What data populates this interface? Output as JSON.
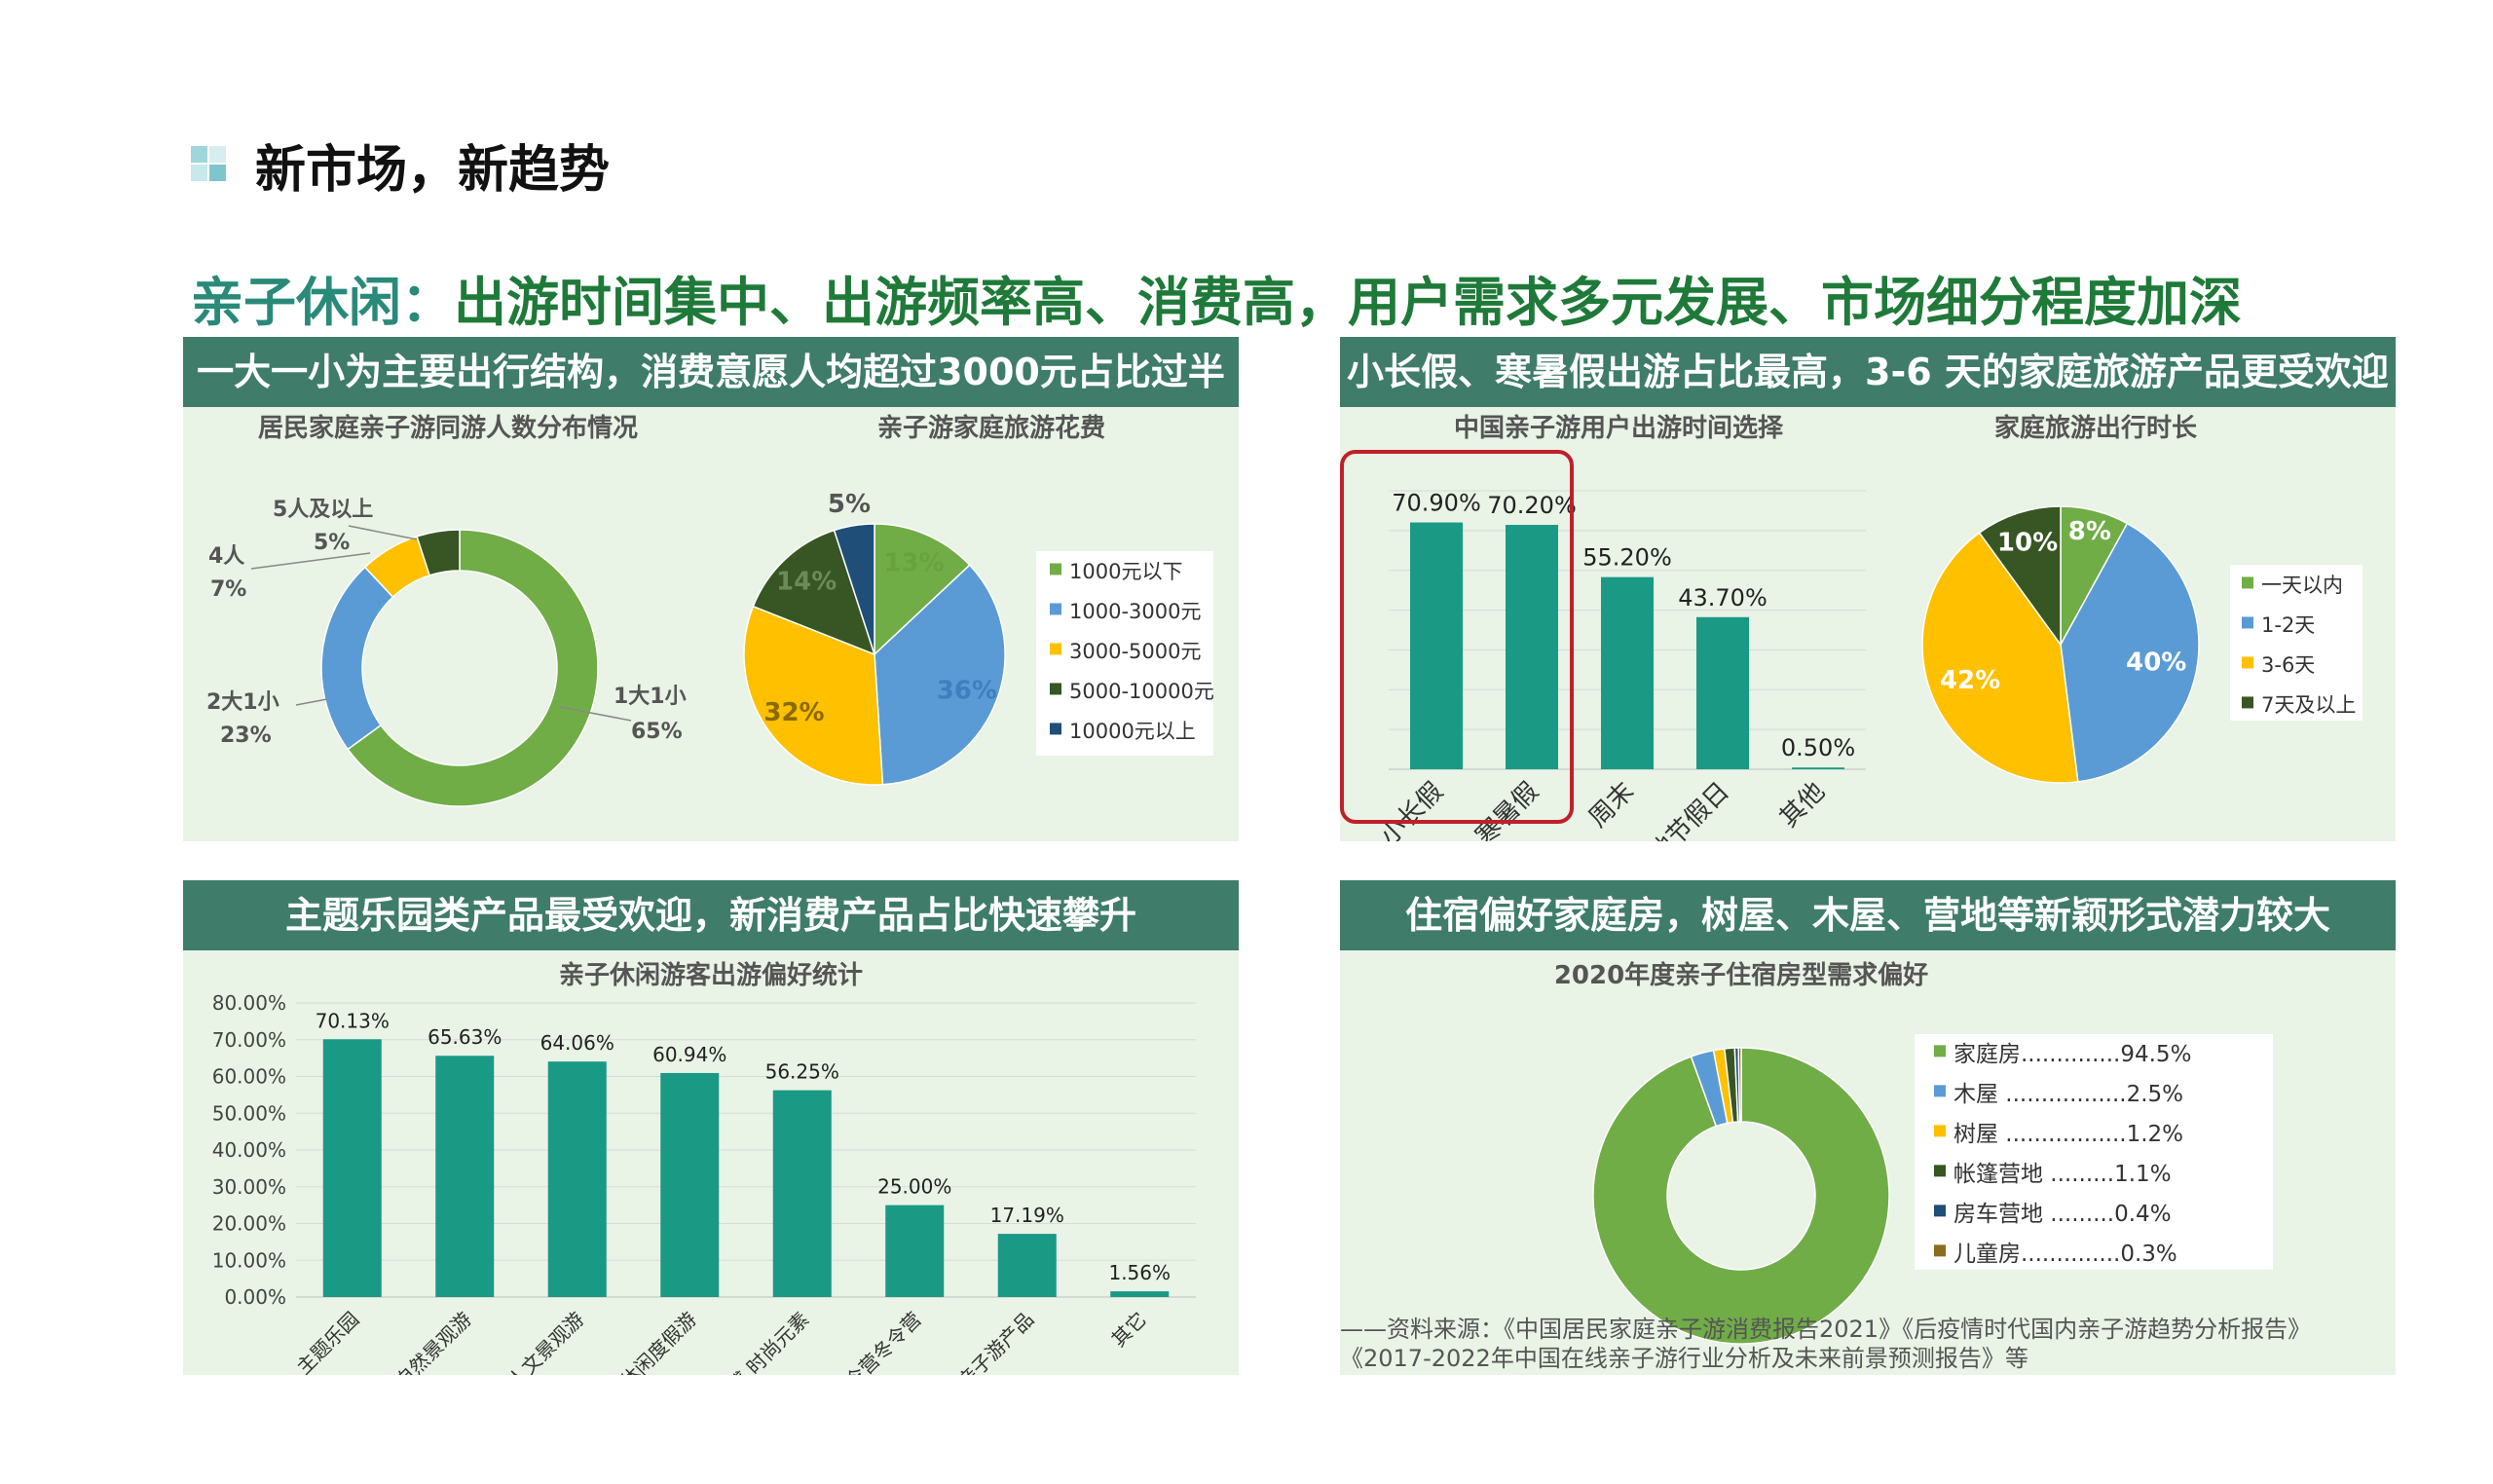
{
  "page": {
    "title": "新市场，新趋势",
    "subtitle_lead": "亲子休闲：",
    "subtitle_rest": "出游时间集中、出游频率高、消费高，用户需求多元发展、市场细分程度加深",
    "source_line1": "——资料来源：《中国居民家庭亲子游消费报告2021》《后疫情时代国内亲子游趋势分析报告》",
    "source_line2": "《2017-2022年中国在线亲子游行业分析及未来前景预测报告》等"
  },
  "panels": [
    {
      "title": "一大一小为主要出行结构，消费意愿人均超过3000元占比过半"
    },
    {
      "title": "小长假、寒暑假出游占比最高，3-6 天的家庭旅游产品更受欢迎"
    },
    {
      "title": "主题乐园类产品最受欢迎，新消费产品占比快速攀升"
    },
    {
      "title": "住宿偏好家庭房，树屋、木屋、营地等新颖形式潜力较大"
    }
  ],
  "colors": {
    "green": "#70ad47",
    "blue": "#5b9bd5",
    "yellow": "#ffc000",
    "dark_green": "#375623",
    "navy": "#1f4e79",
    "olive": "#8c6d1f",
    "teal": "#1a9985",
    "header": "#3f7c6a"
  },
  "chart_data": [
    {
      "type": "pie",
      "variant": "donut",
      "title": "居民家庭亲子游同游人数分布情况",
      "categories": [
        "1大1小",
        "2大1小",
        "4人",
        "5人及以上"
      ],
      "values": [
        65,
        23,
        7,
        5
      ],
      "value_labels": [
        "65%",
        "23%",
        "7%",
        "5%"
      ],
      "colors": [
        "#70ad47",
        "#5b9bd5",
        "#ffc000",
        "#375623"
      ]
    },
    {
      "type": "pie",
      "title": "亲子游家庭旅游花费",
      "categories": [
        "1000元以下",
        "1000-3000元",
        "3000-5000元",
        "5000-10000元",
        "10000元以上"
      ],
      "values": [
        13,
        36,
        32,
        14,
        5
      ],
      "value_labels": [
        "13%",
        "36%",
        "32%",
        "14%",
        "5%"
      ],
      "colors": [
        "#70ad47",
        "#5b9bd5",
        "#ffc000",
        "#375623",
        "#1f4e79"
      ],
      "legend": "right"
    },
    {
      "type": "bar",
      "title": "中国亲子游用户出游时间选择",
      "categories": [
        "小长假",
        "寒暑假",
        "周末",
        "其他节假日",
        "其他"
      ],
      "values": [
        70.9,
        70.2,
        55.2,
        43.7,
        0.5
      ],
      "value_labels": [
        "70.90%",
        "70.20%",
        "55.20%",
        "43.70%",
        "0.50%"
      ],
      "ylim": [
        0,
        80
      ],
      "grid": true,
      "highlight": [
        "小长假",
        "寒暑假"
      ],
      "color": "#1a9985"
    },
    {
      "type": "pie",
      "title": "家庭旅游出行时长",
      "categories": [
        "一天以内",
        "1-2天",
        "3-6天",
        "7天及以上"
      ],
      "values": [
        8,
        40,
        42,
        10
      ],
      "value_labels": [
        "8%",
        "40%",
        "42%",
        "10%"
      ],
      "colors": [
        "#70ad47",
        "#5b9bd5",
        "#ffc000",
        "#375623"
      ],
      "legend": "right"
    },
    {
      "type": "bar",
      "title": "亲子休闲游客出游偏好统计",
      "categories": [
        "主题乐园",
        "自然景观游",
        "人文景观游",
        "休闲度假游",
        "科技感 时尚元素",
        "夏令营冬令营",
        "网红亲子游产品",
        "其它"
      ],
      "values": [
        70.13,
        65.63,
        64.06,
        60.94,
        56.25,
        25.0,
        17.19,
        1.56
      ],
      "value_labels": [
        "70.13%",
        "65.63%",
        "64.06%",
        "60.94%",
        "56.25%",
        "25.00%",
        "17.19%",
        "1.56%"
      ],
      "yticks": [
        "0.00%",
        "10.00%",
        "20.00%",
        "30.00%",
        "40.00%",
        "50.00%",
        "60.00%",
        "70.00%",
        "80.00%"
      ],
      "ylim": [
        0,
        80
      ],
      "grid": true,
      "color": "#1a9985"
    },
    {
      "type": "pie",
      "variant": "donut",
      "title": "2020年度亲子住宿房型需求偏好",
      "categories": [
        "家庭房",
        "木屋",
        "树屋",
        "帐篷营地",
        "房车营地",
        "儿童房"
      ],
      "values": [
        94.5,
        2.5,
        1.2,
        1.1,
        0.4,
        0.3
      ],
      "legend_entries": [
        "家庭房..............94.5%",
        "木屋 .................2.5%",
        "树屋 .................1.2%",
        "帐篷营地 .........1.1%",
        "房车营地 .........0.4%",
        "儿童房..............0.3%"
      ],
      "colors": [
        "#70ad47",
        "#5b9bd5",
        "#ffc000",
        "#375623",
        "#1f4e79",
        "#8c6d1f"
      ],
      "legend": "right"
    }
  ]
}
